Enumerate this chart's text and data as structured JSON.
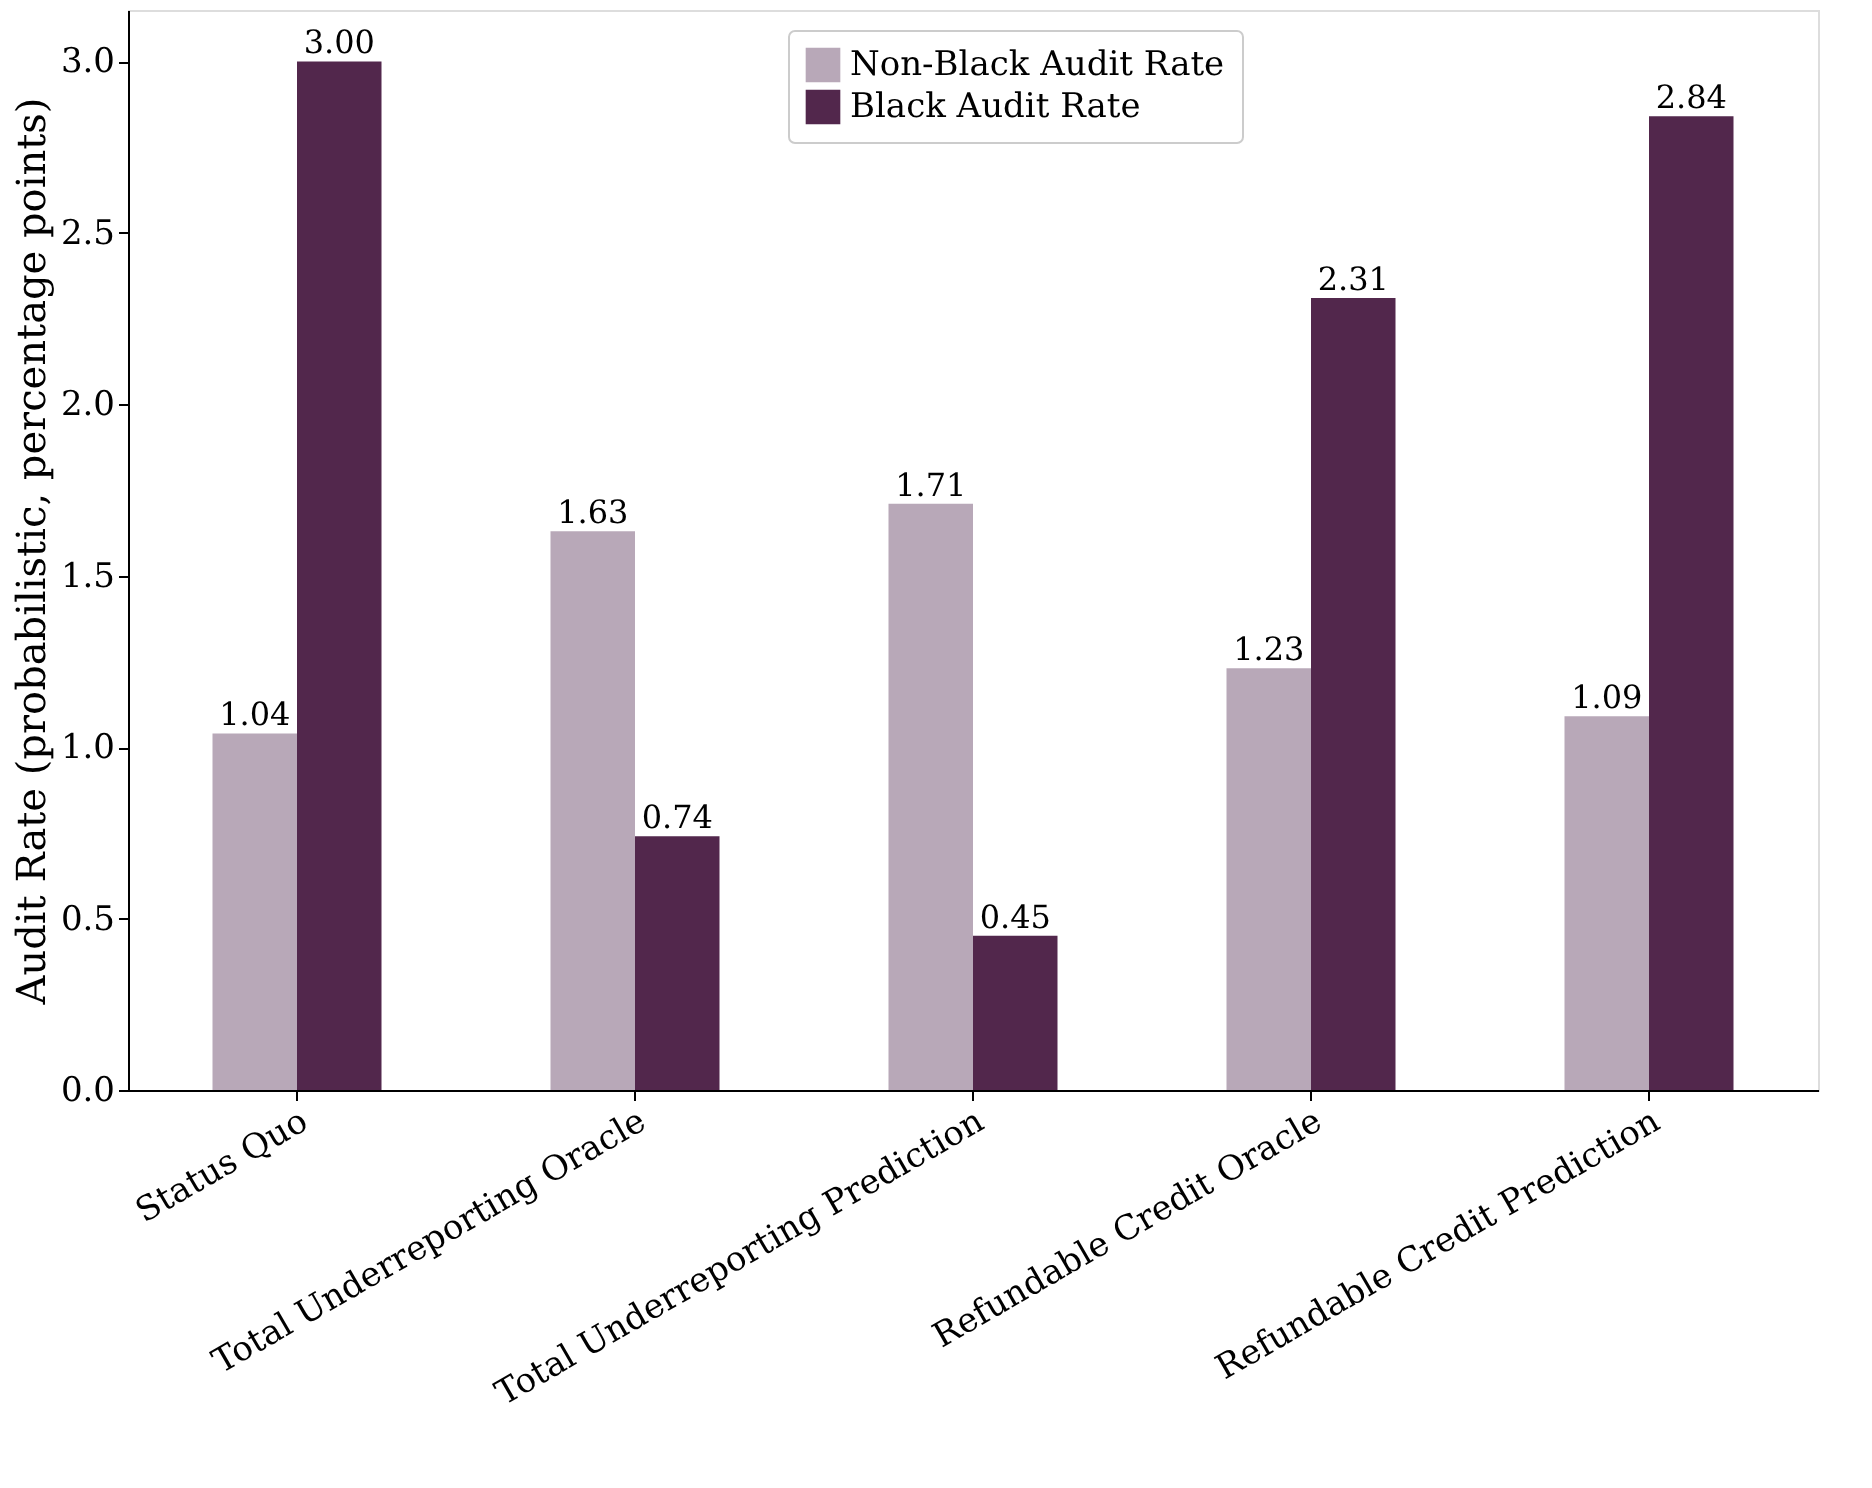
{
  "chart_data": {
    "type": "bar",
    "ylabel": "Audit Rate (probabilistic, percentage points)",
    "categories": [
      "Status Quo",
      "Total Underreporting Oracle",
      "Total Underreporting Prediction",
      "Refundable Credit Oracle",
      "Refundable Credit Prediction"
    ],
    "series": [
      {
        "name": "Non-Black Audit Rate",
        "color": "#b8a8b8",
        "values": [
          1.04,
          1.63,
          1.71,
          1.23,
          1.09
        ],
        "value_labels": [
          "1.04",
          "1.63",
          "1.71",
          "1.23",
          "1.09"
        ]
      },
      {
        "name": "Black Audit Rate",
        "color": "#52274c",
        "values": [
          3.0,
          0.74,
          0.45,
          2.31,
          2.84
        ],
        "value_labels": [
          "3.00",
          "0.74",
          "0.45",
          "2.31",
          "2.84"
        ]
      }
    ],
    "ylim": [
      0,
      3.15
    ],
    "yticks": [
      {
        "value": 0,
        "label": "0.0"
      },
      0.5,
      {
        "value": 1,
        "label": "1.0"
      },
      1.5,
      {
        "value": 2,
        "label": "2.0"
      },
      2.5,
      {
        "value": 3,
        "label": "3.0"
      }
    ],
    "legend": "top",
    "grid": false
  }
}
